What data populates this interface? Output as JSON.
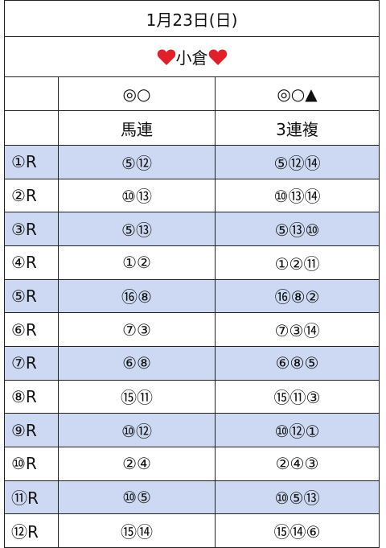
{
  "header": {
    "title": "1月23日(日)",
    "venue": "小倉"
  },
  "table": {
    "columns": [
      "◎○",
      "◎○▲"
    ],
    "subheaders": [
      "馬連",
      "3連複"
    ],
    "rows": [
      [
        "①R",
        "⑤⑫",
        "⑤⑫⑭"
      ],
      [
        "②R",
        "⑩⑬",
        "⑩⑬⑭"
      ],
      [
        "③R",
        "⑤⑬",
        "⑤⑬⑩"
      ],
      [
        "④R",
        "①②",
        "①②⑪"
      ],
      [
        "⑤R",
        "⑯⑧",
        "⑯⑧②"
      ],
      [
        "⑥R",
        "⑦③",
        "⑦③⑭"
      ],
      [
        "⑦R",
        "⑥⑧",
        "⑥⑧⑤"
      ],
      [
        "⑧R",
        "⑮⑪",
        "⑮⑪③"
      ],
      [
        "⑨R",
        "⑩⑫",
        "⑩⑫①"
      ],
      [
        "⑩R",
        "②④",
        "②④③"
      ],
      [
        "⑪R",
        "⑩⑤",
        "⑩⑤⑬"
      ],
      [
        "⑫R",
        "⑮⑭",
        "⑮⑭⑥"
      ]
    ]
  }
}
